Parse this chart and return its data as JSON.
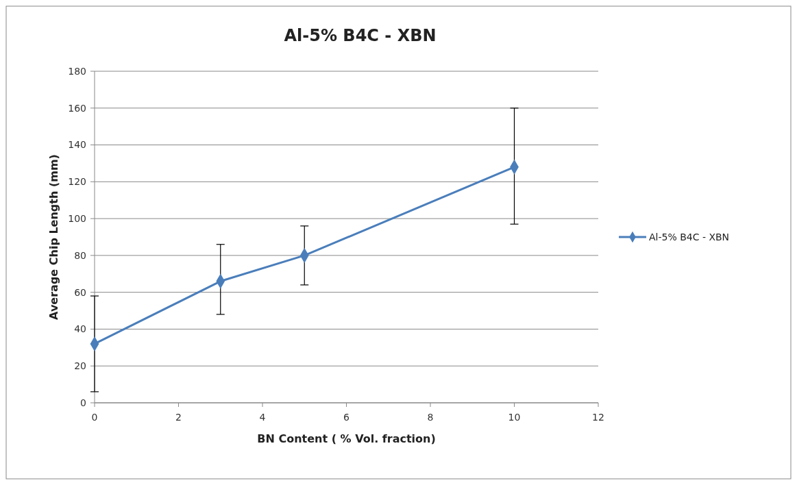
{
  "chart_data": {
    "type": "line",
    "title": "Al-5% B4C - XBN",
    "xlabel": "BN Content ( % Vol. fraction)",
    "ylabel": "Average Chip Length (mm)",
    "x": [
      0,
      3,
      5,
      10
    ],
    "series": [
      {
        "name": "Al-5% B4C - XBN",
        "color": "#4a7ebb",
        "values": [
          32,
          66,
          80,
          128
        ],
        "errors": [
          [
            6,
            58
          ],
          [
            48,
            86
          ],
          [
            64,
            96
          ],
          [
            97,
            160
          ]
        ]
      }
    ],
    "xlim": [
      0,
      12
    ],
    "xticks": [
      0,
      2,
      4,
      6,
      8,
      10,
      12
    ],
    "ylim": [
      0,
      180
    ],
    "yticks": [
      0,
      20,
      40,
      60,
      80,
      100,
      120,
      140,
      160,
      180
    ],
    "grid": "y",
    "legend": "right",
    "marker": "diamond",
    "line_style": "solid"
  }
}
